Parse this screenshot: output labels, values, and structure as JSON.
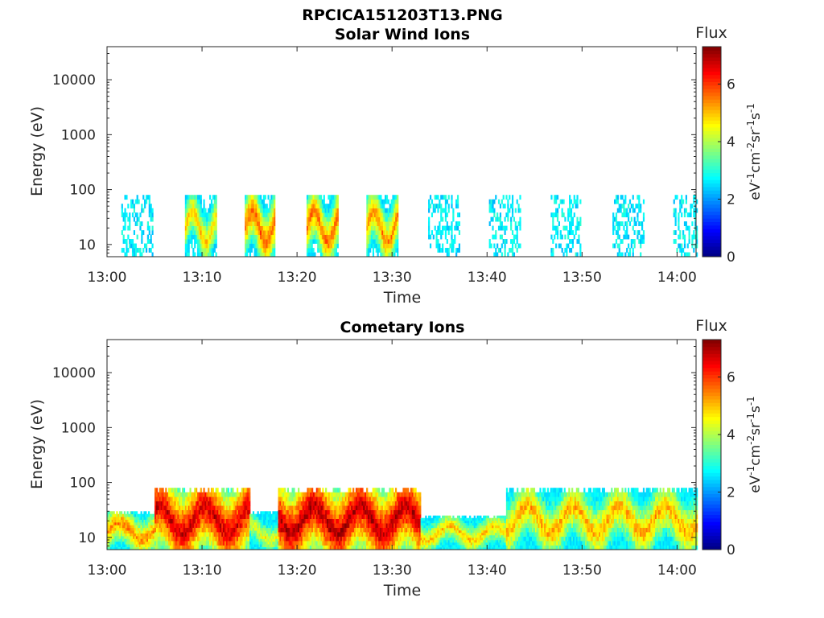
{
  "figure_title": "RPCICA151203T13.PNG",
  "colors": {
    "scale": [
      "#00007f",
      "#0000ff",
      "#007fff",
      "#00ffff",
      "#7fff7f",
      "#ffff00",
      "#ff7f00",
      "#ff0000",
      "#7f0000"
    ]
  },
  "chart_data": [
    {
      "type": "heatmap",
      "title": "Solar Wind Ions",
      "xlabel": "Time",
      "ylabel": "Energy (eV)",
      "yscale": "log",
      "xlim": [
        "13:00",
        "14:02"
      ],
      "ylim": [
        6,
        40000
      ],
      "xticks": [
        "13:00",
        "13:10",
        "13:20",
        "13:30",
        "13:40",
        "13:50",
        "14:00"
      ],
      "yticks": [
        "10",
        "100",
        "1000",
        "10000"
      ],
      "colorbar": {
        "title": "Flux",
        "label": "eV-1cm-2sr-1s-1",
        "range": [
          0,
          7.3
        ],
        "ticks": [
          "0",
          "2",
          "4",
          "6"
        ]
      },
      "bursts": [
        {
          "start": "13:01.5",
          "end": "13:04.8",
          "emax": 80,
          "peak_flux": 2.6
        },
        {
          "start": "13:08.2",
          "end": "13:11.5",
          "emax": 80,
          "peak_flux": 5.0
        },
        {
          "start": "13:14.5",
          "end": "13:17.6",
          "emax": 80,
          "peak_flux": 5.8
        },
        {
          "start": "13:21.0",
          "end": "13:24.3",
          "emax": 80,
          "peak_flux": 5.7
        },
        {
          "start": "13:27.3",
          "end": "13:30.5",
          "emax": 80,
          "peak_flux": 5.5
        },
        {
          "start": "13:33.8",
          "end": "13:37.1",
          "emax": 80,
          "peak_flux": 3.2
        },
        {
          "start": "13:40.2",
          "end": "13:43.4",
          "emax": 80,
          "peak_flux": 2.5
        },
        {
          "start": "13:46.7",
          "end": "13:49.8",
          "emax": 80,
          "peak_flux": 2.6
        },
        {
          "start": "13:53.2",
          "end": "13:56.4",
          "emax": 80,
          "peak_flux": 2.5
        },
        {
          "start": "13:59.6",
          "end": "14:02.0",
          "emax": 80,
          "peak_flux": 2.5
        }
      ]
    },
    {
      "type": "heatmap",
      "title": "Cometary Ions",
      "xlabel": "Time",
      "ylabel": "Energy (eV)",
      "yscale": "log",
      "xlim": [
        "13:00",
        "14:02"
      ],
      "ylim": [
        6,
        40000
      ],
      "xticks": [
        "13:00",
        "13:10",
        "13:20",
        "13:30",
        "13:40",
        "13:50",
        "14:00"
      ],
      "yticks": [
        "10",
        "100",
        "1000",
        "10000"
      ],
      "colorbar": {
        "title": "Flux",
        "label": "eV-1cm-2sr-1s-1",
        "range": [
          0,
          7.3
        ],
        "ticks": [
          "0",
          "2",
          "4",
          "6"
        ]
      },
      "segments": [
        {
          "start": "13:00",
          "end": "13:05",
          "emax": 30,
          "peak_flux": 5.5
        },
        {
          "start": "13:05",
          "end": "13:15",
          "emax": 80,
          "peak_flux": 6.8
        },
        {
          "start": "13:15",
          "end": "13:18",
          "emax": 30,
          "peak_flux": 4.5
        },
        {
          "start": "13:18",
          "end": "13:33",
          "emax": 80,
          "peak_flux": 7.0
        },
        {
          "start": "13:33",
          "end": "13:42",
          "emax": 25,
          "peak_flux": 5.0
        },
        {
          "start": "13:42",
          "end": "14:02",
          "emax": 80,
          "peak_flux": 5.2
        }
      ]
    }
  ]
}
